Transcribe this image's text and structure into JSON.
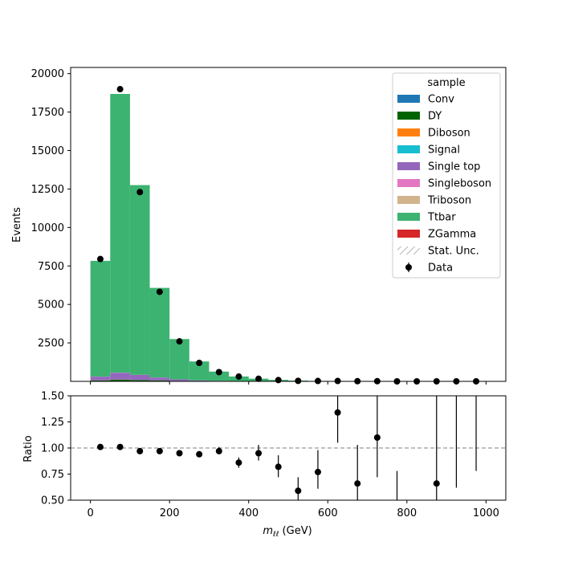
{
  "chart_data": {
    "type": "bar",
    "stacked": true,
    "main_panel": {
      "ylabel": "Events",
      "ylim": [
        0,
        20400
      ],
      "yticks": [
        "2500",
        "5000",
        "7500",
        "10000",
        "12500",
        "15000",
        "17500",
        "20000"
      ],
      "bin_edges": [
        0,
        50,
        100,
        150,
        200,
        250,
        300,
        350,
        400,
        450,
        500,
        550,
        600,
        650,
        700,
        750,
        800,
        850,
        900,
        950,
        1000
      ],
      "series": [
        {
          "name": "Conv",
          "color": "#1f77b4",
          "values": [
            0,
            0,
            0,
            0,
            0,
            0,
            0,
            0,
            0,
            0,
            0,
            0,
            0,
            0,
            0,
            0,
            0,
            0,
            0,
            0
          ]
        },
        {
          "name": "DY",
          "color": "#006400",
          "values": [
            60,
            110,
            80,
            55,
            25,
            12,
            6,
            3,
            2,
            1,
            0,
            0,
            0,
            0,
            0,
            0,
            0,
            0,
            0,
            0
          ]
        },
        {
          "name": "Diboson",
          "color": "#ff7f0e",
          "values": [
            5,
            8,
            6,
            4,
            2,
            1,
            1,
            0,
            0,
            0,
            0,
            0,
            0,
            0,
            0,
            0,
            0,
            0,
            0,
            0
          ]
        },
        {
          "name": "Signal",
          "color": "#17becf",
          "values": [
            0,
            0,
            0,
            0,
            0,
            0,
            0,
            0,
            0,
            0,
            0,
            0,
            0,
            0,
            0,
            0,
            0,
            0,
            0,
            0
          ]
        },
        {
          "name": "Single top",
          "color": "#9467bd",
          "values": [
            240,
            440,
            330,
            190,
            100,
            50,
            27,
            14,
            8,
            4,
            2,
            1,
            1,
            0,
            0,
            0,
            0,
            0,
            0,
            0
          ]
        },
        {
          "name": "Singleboson",
          "color": "#e377c2",
          "values": [
            5,
            10,
            8,
            5,
            3,
            1,
            1,
            0,
            0,
            0,
            0,
            0,
            0,
            0,
            0,
            0,
            0,
            0,
            0,
            0
          ]
        },
        {
          "name": "Triboson",
          "color": "#d2b48c",
          "values": [
            0,
            0,
            0,
            0,
            0,
            0,
            0,
            0,
            0,
            0,
            0,
            0,
            0,
            0,
            0,
            0,
            0,
            0,
            0,
            0
          ]
        },
        {
          "name": "Ttbar",
          "color": "#3cb371",
          "values": [
            7520,
            18110,
            12330,
            5820,
            2620,
            1230,
            600,
            300,
            165,
            92,
            50,
            28,
            15,
            10,
            6,
            4,
            2,
            1,
            1,
            1
          ]
        },
        {
          "name": "ZGamma",
          "color": "#d62728",
          "values": [
            0,
            0,
            0,
            0,
            0,
            0,
            0,
            0,
            0,
            0,
            0,
            0,
            0,
            0,
            0,
            0,
            0,
            0,
            0,
            0
          ]
        }
      ],
      "data": {
        "name": "Data",
        "x": [
          25,
          75,
          125,
          175,
          225,
          275,
          325,
          375,
          425,
          475,
          525,
          575,
          625,
          675,
          725,
          775,
          825,
          875,
          925,
          975
        ],
        "y": [
          7950,
          18990,
          12300,
          5820,
          2600,
          1200,
          600,
          310,
          170,
          83,
          33,
          23,
          23,
          10,
          10,
          0,
          0,
          2,
          1,
          1
        ]
      }
    },
    "ratio_panel": {
      "ylabel": "Ratio",
      "ylim": [
        0.5,
        1.5
      ],
      "yticks": [
        "0.50",
        "0.75",
        "1.00",
        "1.25",
        "1.50"
      ],
      "reference_line": 1.0,
      "points": [
        {
          "x": 25,
          "y": 1.01,
          "lo": 1.0,
          "hi": 1.02
        },
        {
          "x": 75,
          "y": 1.01,
          "lo": 1.0,
          "hi": 1.02
        },
        {
          "x": 125,
          "y": 0.97,
          "lo": 0.96,
          "hi": 0.98
        },
        {
          "x": 175,
          "y": 0.97,
          "lo": 0.95,
          "hi": 0.98
        },
        {
          "x": 225,
          "y": 0.95,
          "lo": 0.93,
          "hi": 0.97
        },
        {
          "x": 275,
          "y": 0.94,
          "lo": 0.92,
          "hi": 0.97
        },
        {
          "x": 325,
          "y": 0.97,
          "lo": 0.94,
          "hi": 1.01
        },
        {
          "x": 375,
          "y": 0.86,
          "lo": 0.81,
          "hi": 0.91
        },
        {
          "x": 425,
          "y": 0.95,
          "lo": 0.88,
          "hi": 1.03
        },
        {
          "x": 475,
          "y": 0.82,
          "lo": 0.72,
          "hi": 0.93
        },
        {
          "x": 525,
          "y": 0.59,
          "lo": 0.49,
          "hi": 0.72
        },
        {
          "x": 575,
          "y": 0.77,
          "lo": 0.61,
          "hi": 0.98
        },
        {
          "x": 625,
          "y": 1.34,
          "lo": 1.05,
          "hi": 1.75
        },
        {
          "x": 675,
          "y": 0.66,
          "lo": 0.45,
          "hi": 1.03
        },
        {
          "x": 725,
          "y": 1.1,
          "lo": 0.72,
          "hi": 1.6
        },
        {
          "x": 775,
          "y": null,
          "lo": 0.45,
          "hi": 0.78
        },
        {
          "x": 875,
          "y": 0.66,
          "lo": 0.45,
          "hi": 1.6
        },
        {
          "x": 925,
          "y": null,
          "lo": 0.62,
          "hi": 1.6
        },
        {
          "x": 975,
          "y": null,
          "lo": 0.78,
          "hi": 1.6
        }
      ]
    },
    "xlabel_var": "m",
    "xlabel_sub": "ℓℓ",
    "xlabel_unit": " (GeV)",
    "xlim": [
      -50,
      1050
    ],
    "xticks": [
      "0",
      "200",
      "400",
      "600",
      "800",
      "1000"
    ],
    "legend": {
      "title": "sample",
      "placement": "top-right",
      "entries": [
        "Conv",
        "DY",
        "Diboson",
        "Signal",
        "Single top",
        "Singleboson",
        "Triboson",
        "Ttbar",
        "ZGamma",
        "Stat. Unc.",
        "Data"
      ]
    }
  }
}
